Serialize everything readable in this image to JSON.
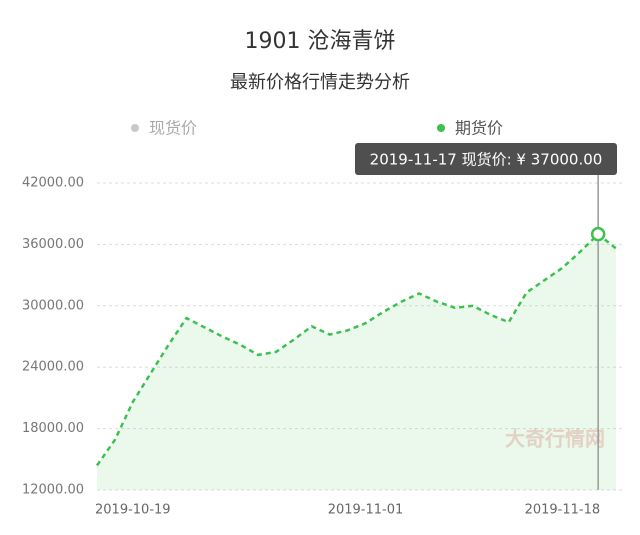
{
  "chart_data": {
    "type": "line",
    "title": "1901 沧海青饼",
    "subtitle": "最新价格行情走势分析",
    "legend": [
      {
        "name": "现货价",
        "color": "#c8c8c8"
      },
      {
        "name": "期货价",
        "color": "#3cc14e"
      }
    ],
    "color": "#3cc14e",
    "categories": [
      null,
      null,
      "2019-10-19",
      null,
      null,
      null,
      null,
      null,
      null,
      null,
      null,
      null,
      null,
      null,
      null,
      "2019-11-01",
      null,
      null,
      null,
      null,
      null,
      null,
      null,
      null,
      null,
      null,
      "2019-11-18",
      null,
      null,
      null
    ],
    "values": [
      14400,
      16900,
      20600,
      23400,
      26200,
      28800,
      27900,
      27000,
      26200,
      25200,
      25500,
      26700,
      28000,
      27200,
      27600,
      28300,
      29400,
      30400,
      31200,
      30400,
      29800,
      30000,
      29100,
      28400,
      31300,
      32500,
      33700,
      35300,
      37000,
      35600
    ],
    "ylim": [
      12000,
      42000
    ],
    "yticks": [
      {
        "value": 12000,
        "label": "12000.00"
      },
      {
        "value": 18000,
        "label": "18000.00"
      },
      {
        "value": 24000,
        "label": "24000.00"
      },
      {
        "value": 30000,
        "label": "30000.00"
      },
      {
        "value": 36000,
        "label": "36000.00"
      },
      {
        "value": 42000,
        "label": "42000.00"
      }
    ],
    "grid": true,
    "tooltip": "2019-11-17 现货价: ¥ 37000.00",
    "watermark": "大奇行情网"
  }
}
